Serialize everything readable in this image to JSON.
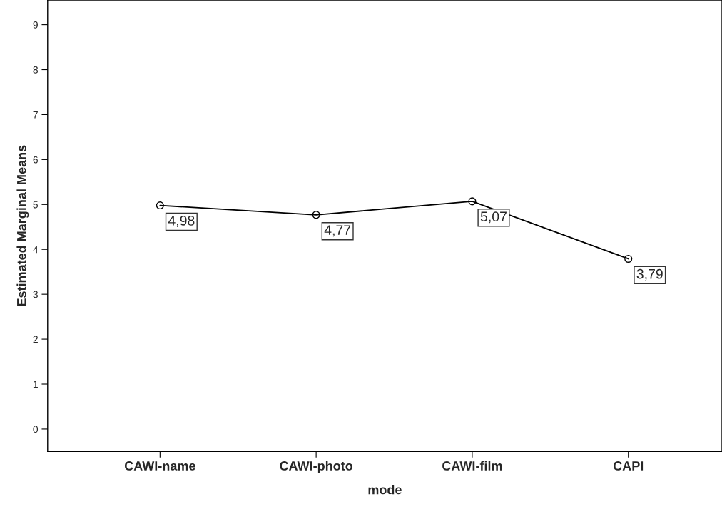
{
  "chart_data": {
    "type": "line",
    "xlabel": "mode",
    "ylabel": "Estimated Marginal Means",
    "categories": [
      "CAWI-name",
      "CAWI-photo",
      "CAWI-film",
      "CAPI"
    ],
    "values": [
      4.98,
      4.77,
      5.07,
      3.79
    ],
    "value_labels": [
      "4,98",
      "4,77",
      "5,07",
      "3,79"
    ],
    "color": "#000000",
    "marker": "circle",
    "line_style": "solid",
    "ylim": [
      -0.5,
      9.55
    ],
    "yticks": [
      0,
      1,
      2,
      3,
      4,
      5,
      6,
      7,
      8,
      9
    ],
    "grid": false
  }
}
